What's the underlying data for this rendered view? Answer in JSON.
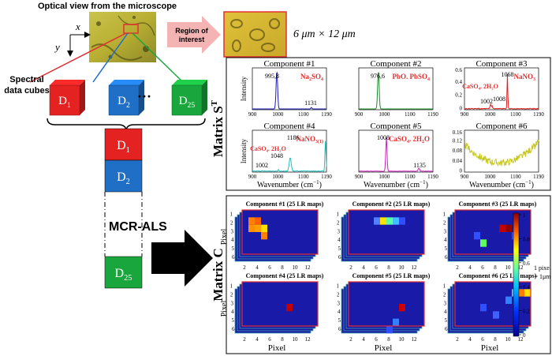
{
  "top": {
    "optical_title": "Optical  view from the microscope",
    "axis_x": "x",
    "axis_y": "y",
    "roi_label_1": "Region of",
    "roi_label_2": "interest",
    "roi_size": "6 μm × 12 μm"
  },
  "left": {
    "spectral_label_1": "Spectral",
    "spectral_label_2": "data cubes",
    "cubes": [
      {
        "label": "D",
        "sub": "1",
        "color": "#e52222"
      },
      {
        "label": "D",
        "sub": "2",
        "color": "#1f6fc6"
      },
      {
        "label": "D",
        "sub": "25",
        "color": "#19a63c"
      }
    ],
    "ellipsis": "···",
    "stack": [
      {
        "label": "D",
        "sub": "1",
        "color": "#e52222"
      },
      {
        "label": "D",
        "sub": "2",
        "color": "#1f6fc6"
      },
      {
        "label": "D",
        "sub": "25",
        "color": "#19a63c"
      }
    ],
    "mcr_label": "MCR-ALS"
  },
  "colors": {
    "arrow_pink": "#f4b4b4",
    "map_bg": "#1a1aa8",
    "map_frame": "#e23030",
    "text_red": "#e23030"
  },
  "matrix_s": {
    "label": "Matrix S",
    "label_sup": "T",
    "ylabel": "Intensity",
    "xlabel": "Wavenumber (cm",
    "xlabel_sup": "−1",
    "xlabel_end": ")",
    "xticks": [
      "900",
      "1000",
      "1100",
      "1190"
    ],
    "panels": [
      {
        "title": "Component #1",
        "species": "Na",
        "species_sub": "2",
        "species_rest": "SO",
        "species_sub2": "4",
        "peak_labels": [
          "995,8",
          "1131"
        ],
        "yticks": [],
        "color": "#1a1ab8"
      },
      {
        "title": "Component #2",
        "species": "PbO. PbSO",
        "species_sub": "4",
        "species_rest": "",
        "species_sub2": "",
        "peak_labels": [
          "976,6"
        ],
        "yticks": [],
        "color": "#1a8a2a"
      },
      {
        "title": "Component #3",
        "species": "NaNO",
        "species_sub": "3",
        "species_rest": "",
        "species_sub2": "",
        "peak_labels": [
          "1068",
          "1002",
          "1008"
        ],
        "extra_species": "CaSO₄. 2H₂O",
        "yticks": [
          "0.6",
          "0.4",
          "0.2",
          "0"
        ],
        "color": "#e02020"
      },
      {
        "title": "Component #4",
        "species": "NaNO",
        "species_sub": "3(1)",
        "species_rest": "",
        "species_sub2": "",
        "peak_labels": [
          "1186",
          "1048",
          "1002"
        ],
        "extra_species": "CaSO₄. 2H₂O",
        "yticks": [],
        "color": "#20c0c0"
      },
      {
        "title": "Component #5",
        "species": "CaSO",
        "species_sub": "4",
        "species_rest": ". 2H",
        "species_sub2": "2",
        "species_end": "O",
        "peak_labels": [
          "1008",
          "1135"
        ],
        "yticks": [],
        "color": "#d020c0"
      },
      {
        "title": "Component #6",
        "species": "",
        "species_sub": "",
        "species_rest": "",
        "species_sub2": "",
        "peak_labels": [],
        "yticks": [
          "0.16",
          "0.12",
          "0.08",
          "0.04",
          "0"
        ],
        "color": "#c8c820"
      }
    ]
  },
  "matrix_c": {
    "label": "Matrix C",
    "ylabel": "Pixel",
    "xlabel": "Pixel",
    "xticks": [
      "2",
      "4",
      "6",
      "8",
      "10",
      "12"
    ],
    "yticks": [
      "1",
      "2",
      "3",
      "4",
      "5",
      "6"
    ],
    "maps": [
      {
        "title": "Component #1 (25 LR maps)"
      },
      {
        "title": "Component #2 (25 LR maps)"
      },
      {
        "title": "Component #3 (25 LR maps)"
      },
      {
        "title": "Component #4 (25 LR maps)"
      },
      {
        "title": "Component #5 (25 LR maps)"
      },
      {
        "title": "Component #6 (25 LR maps)"
      }
    ],
    "colorbar_ticks": [
      "1",
      "0.8",
      "0.6",
      "0.4",
      "0.2",
      "0"
    ],
    "pixel_note_1": "1 pixel",
    "pixel_note_2": "= 1μm"
  }
}
